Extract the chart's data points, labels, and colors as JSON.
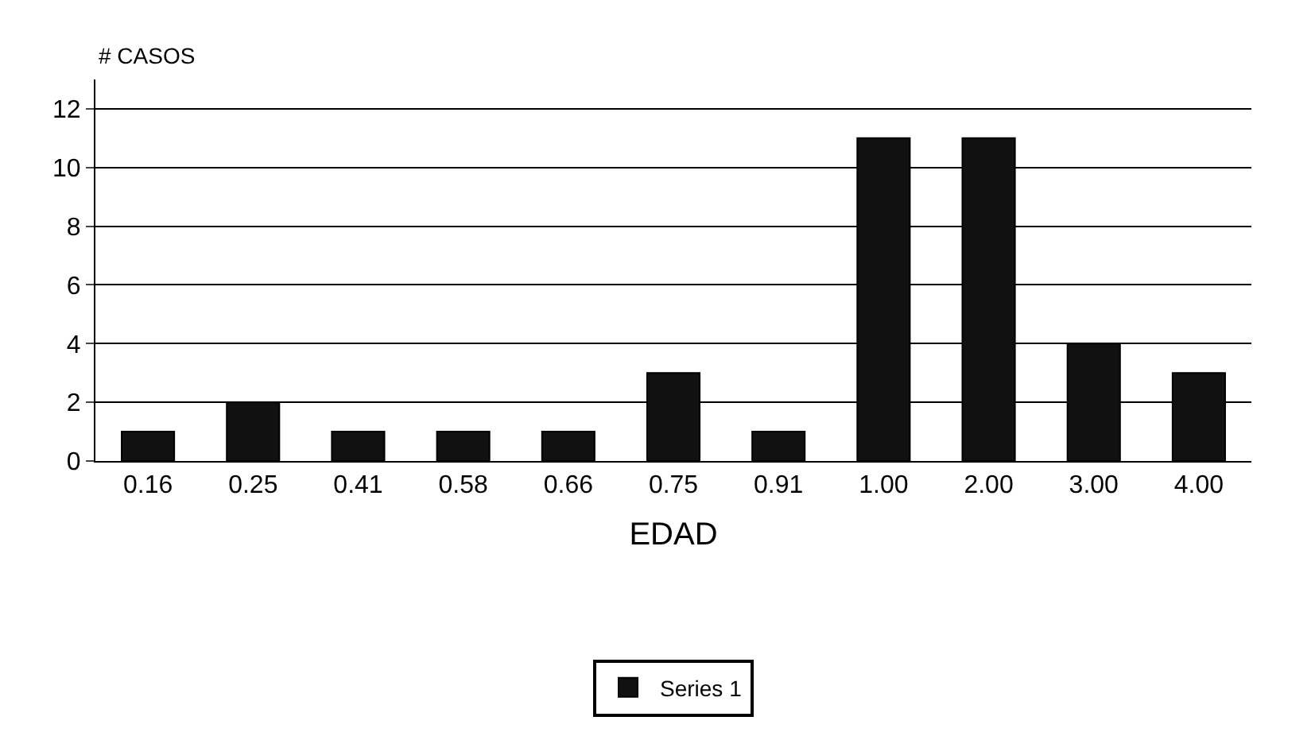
{
  "chart_data": {
    "type": "bar",
    "xlabel": "EDAD",
    "ylabel": "# CASOS",
    "categories": [
      "0.16",
      "0.25",
      "0.41",
      "0.58",
      "0.66",
      "0.75",
      "0.91",
      "1.00",
      "2.00",
      "3.00",
      "4.00"
    ],
    "series": [
      {
        "name": "Series 1",
        "color": "#111111",
        "values": [
          1,
          2,
          1,
          1,
          1,
          3,
          1,
          11,
          11,
          4,
          3
        ]
      }
    ],
    "ylim": [
      0,
      13
    ],
    "yticks": [
      0,
      2,
      4,
      6,
      8,
      10,
      12
    ],
    "grid": "y",
    "legend": "bottom"
  }
}
